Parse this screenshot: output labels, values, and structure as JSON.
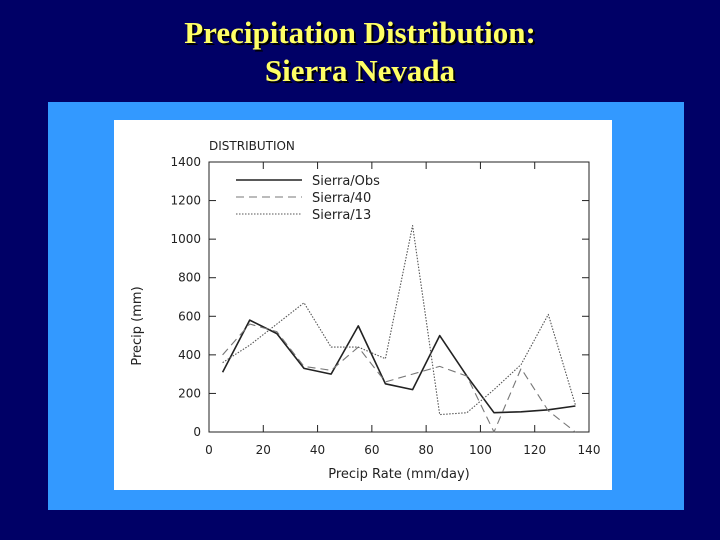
{
  "slide": {
    "title_line1": "Precipitation Distribution:",
    "title_line2": "Sierra Nevada"
  },
  "colors": {
    "background": "#000066",
    "title": "#ffff66",
    "panel": "#3399ff",
    "plot_bg": "#ffffff",
    "ink": "#222222"
  },
  "chart_data": {
    "type": "line",
    "title": "DISTRIBUTION",
    "xlabel": "Precip Rate (mm/day)",
    "ylabel": "Precip (mm)",
    "xlim": [
      0,
      140
    ],
    "ylim": [
      0,
      1400
    ],
    "xticks": [
      0,
      20,
      40,
      60,
      80,
      100,
      120,
      140
    ],
    "yticks": [
      0,
      200,
      400,
      600,
      800,
      1000,
      1200,
      1400
    ],
    "grid": false,
    "legend_position": "top-left",
    "x": [
      5,
      15,
      25,
      35,
      45,
      55,
      65,
      75,
      85,
      95,
      105,
      115,
      125,
      135
    ],
    "series": [
      {
        "name": "Sierra/Obs",
        "style": "solid",
        "values": [
          310,
          580,
          510,
          330,
          300,
          550,
          250,
          220,
          500,
          290,
          100,
          105,
          115,
          135
        ]
      },
      {
        "name": "Sierra/40",
        "style": "dashed",
        "values": [
          400,
          560,
          520,
          340,
          320,
          440,
          260,
          300,
          340,
          290,
          0,
          330,
          110,
          0
        ]
      },
      {
        "name": "Sierra/13",
        "style": "dotted",
        "values": [
          360,
          450,
          560,
          670,
          440,
          440,
          380,
          1070,
          90,
          100,
          220,
          350,
          610,
          140
        ]
      }
    ]
  }
}
